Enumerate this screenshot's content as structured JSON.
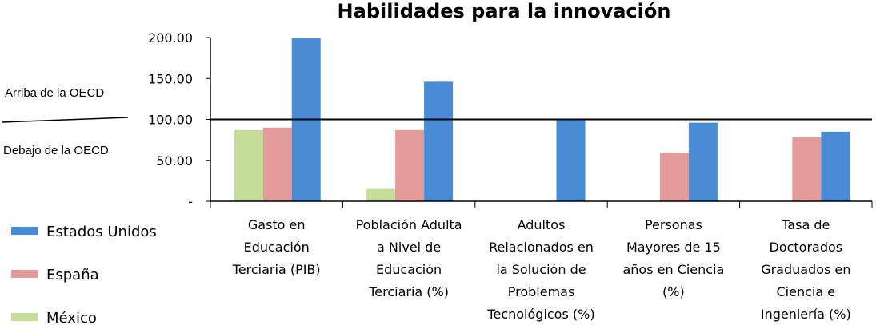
{
  "chart_data": {
    "type": "bar",
    "title": "Habilidades para la innovación",
    "categories": [
      [
        "Gasto en",
        "Educación",
        "Terciaria (PIB)"
      ],
      [
        "Población Adulta",
        "a Nivel de",
        "Educación",
        "Terciaria (%)"
      ],
      [
        "Adultos",
        "Relacionados en",
        "la Solución de",
        "Problemas",
        "Tecnológicos (%)"
      ],
      [
        "Personas",
        "Mayores de 15",
        "años en Ciencia",
        "(%)"
      ],
      [
        "Tasa de",
        "Doctorados",
        "Graduados en",
        "Ciencia e",
        "Ingeniería (%)"
      ]
    ],
    "series": [
      {
        "name": "México",
        "color": "#c5dd99",
        "values": [
          87,
          15,
          null,
          null,
          null
        ]
      },
      {
        "name": "España",
        "color": "#e29a9a",
        "values": [
          90,
          87,
          null,
          59,
          78
        ]
      },
      {
        "name": "Estados Unidos",
        "color": "#4a8bd6",
        "values": [
          199,
          146,
          101,
          96,
          85
        ]
      }
    ],
    "legend_order": [
      2,
      1,
      0
    ],
    "y_ticks": [
      "-",
      "50.00",
      "100.00",
      "150.00",
      "200.00"
    ],
    "ylim": [
      0,
      200
    ],
    "reference_line": 100,
    "above_label": "Arriba de la OECD",
    "below_label": "Debajo de la OECD",
    "legend_placement": "bottom-left"
  }
}
